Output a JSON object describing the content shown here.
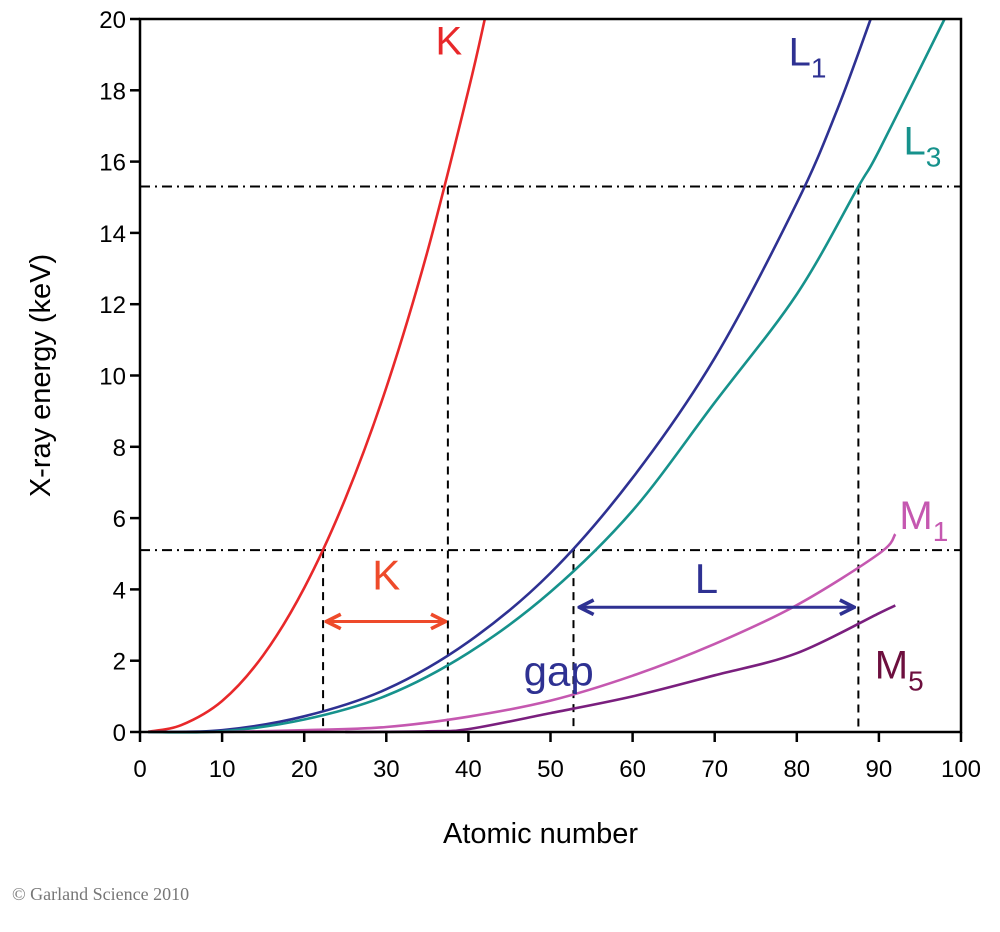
{
  "chart_data": {
    "type": "line",
    "xlabel": "Atomic number",
    "ylabel": "X-ray energy (keV)",
    "xlim": [
      0,
      100
    ],
    "ylim": [
      0,
      20
    ],
    "xticks": [
      0,
      10,
      20,
      30,
      40,
      50,
      60,
      70,
      80,
      90,
      100
    ],
    "yticks": [
      0,
      2,
      4,
      6,
      8,
      10,
      12,
      14,
      16,
      18,
      20
    ],
    "grid": false,
    "series": [
      {
        "name": "K",
        "sub": "",
        "color": "#e8282a",
        "label_color": "#e8282a",
        "label_pos": [
          36,
          19
        ],
        "x": [
          1,
          5,
          10,
          15,
          20,
          25,
          30,
          35,
          40,
          42
        ],
        "y": [
          0.01,
          0.19,
          0.87,
          2.15,
          4.04,
          6.54,
          9.66,
          13.47,
          18.0,
          20.0
        ]
      },
      {
        "name": "L",
        "sub": "1",
        "color": "#2e3192",
        "label_color": "#2e3192",
        "label_pos": [
          79,
          18.7
        ],
        "x": [
          1,
          10,
          20,
          30,
          40,
          50,
          60,
          70,
          80,
          85,
          89
        ],
        "y": [
          0,
          0.05,
          0.44,
          1.2,
          2.53,
          4.46,
          7.13,
          10.49,
          14.84,
          17.5,
          20.0
        ]
      },
      {
        "name": "L",
        "sub": "3",
        "color": "#16928c",
        "label_color": "#16928c",
        "label_pos": [
          93,
          16.2
        ],
        "x": [
          1,
          10,
          20,
          30,
          40,
          50,
          60,
          70,
          80,
          87.5,
          90,
          98
        ],
        "y": [
          0,
          0.02,
          0.35,
          1.02,
          2.22,
          3.93,
          6.21,
          9.24,
          12.28,
          15.3,
          16.3,
          20.0
        ]
      },
      {
        "name": "M",
        "sub": "1",
        "color": "#c558b0",
        "label_color": "#c558b0",
        "label_pos": [
          92.5,
          5.7
        ],
        "x": [
          10,
          20,
          30,
          40,
          50,
          60,
          70,
          80,
          90,
          92
        ],
        "y": [
          0,
          0.05,
          0.14,
          0.43,
          0.88,
          1.58,
          2.47,
          3.56,
          5.0,
          5.55
        ]
      },
      {
        "name": "M",
        "sub": "5",
        "color": "#7a1f7e",
        "label_color": "#6d0f3e",
        "label_pos": [
          89.5,
          1.5
        ],
        "x": [
          25,
          35,
          40,
          50,
          60,
          70,
          80,
          90,
          92
        ],
        "y": [
          0,
          0.02,
          0.08,
          0.53,
          1.0,
          1.59,
          2.21,
          3.33,
          3.55
        ]
      }
    ],
    "reference_lines": {
      "horizontal_energies": [
        15.3,
        5.1
      ],
      "vertical": [
        {
          "x": 22.3,
          "y_top": 5.1
        },
        {
          "x": 37.5,
          "y_top": 15.3
        },
        {
          "x": 52.8,
          "y_top": 5.1
        },
        {
          "x": 87.5,
          "y_top": 15.3
        }
      ]
    },
    "annotations": [
      {
        "text": "K",
        "color": "#ee4a2a",
        "arrow": [
          22.7,
          37.2
        ],
        "arrow_y": 3.1,
        "pos": [
          30,
          4.0
        ]
      },
      {
        "text": "L",
        "color": "#2e3192",
        "arrow": [
          53.5,
          87
        ],
        "arrow_y": 3.5,
        "pos": [
          69,
          3.9
        ]
      },
      {
        "text": "gap",
        "color": "#2e3192",
        "pos": [
          51,
          1.3
        ]
      }
    ]
  },
  "copyright": "© Garland Science 2010"
}
